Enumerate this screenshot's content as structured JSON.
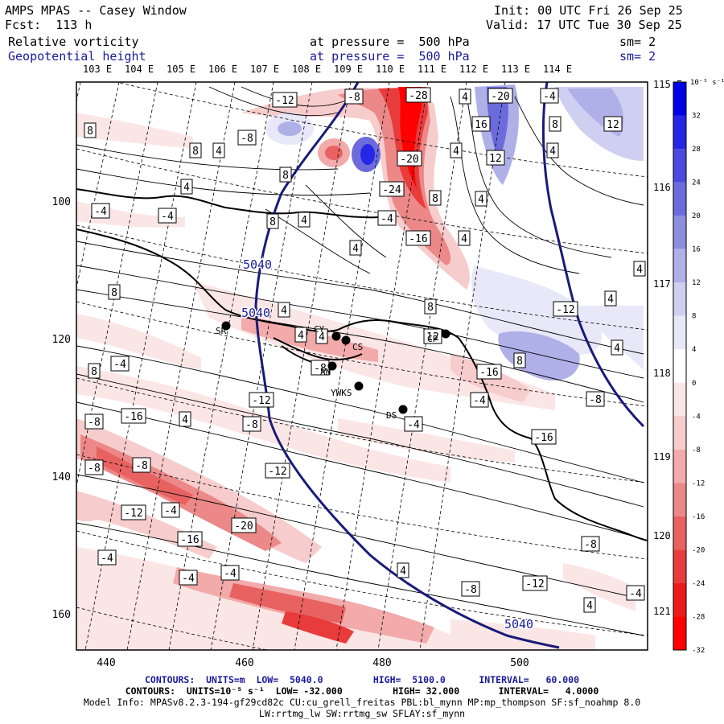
{
  "header": {
    "title": "AMPS MPAS -- Casey Window",
    "forecast": "Fcst:  113 h",
    "init": "Init: 00 UTC Fri 26 Sep 25",
    "valid": "Valid: 17 UTC Tue 30 Sep 25",
    "field1_name": "Relative vorticity",
    "field1_level": "at pressure =  500 hPa",
    "field1_smooth": "sm= 2",
    "field2_name": "Geopotential height",
    "field2_level": "at pressure =  500 hPa",
    "field2_smooth": "sm= 2"
  },
  "longitude_top_labels": [
    "103 E",
    "104 E",
    "105 E",
    "106 E",
    "107 E",
    "108 E",
    "109 E",
    "110 E",
    "111 E",
    "112 E",
    "113 E",
    "114 E"
  ],
  "longitude_right_labels": [
    "115 E",
    "116 E",
    "117 E",
    "118 E",
    "119 E",
    "120 E",
    "121 E"
  ],
  "grid_x_ticks": [
    "440",
    "460",
    "480",
    "500"
  ],
  "grid_y_ticks": [
    "100",
    "120",
    "140",
    "160"
  ],
  "stations": [
    {
      "label": "SR"
    },
    {
      "label": "CS"
    },
    {
      "label": "AN"
    },
    {
      "label": "YWKS"
    },
    {
      "label": "DS"
    },
    {
      "label": "CP"
    },
    {
      "label": "CY"
    }
  ],
  "height_contour_labels": [
    "5040",
    "5040",
    "5040"
  ],
  "vorticity_labels": [
    "-12",
    "-8",
    "-28",
    "4",
    "-20",
    "-4",
    "16",
    "8",
    "12",
    "8",
    "8",
    "4",
    "-8",
    "-20",
    "4",
    "12",
    "4",
    "8",
    "-24",
    "4",
    "8",
    "4",
    "-4",
    "-4",
    "8",
    "4",
    "-4",
    "-16",
    "4",
    "4",
    "4",
    "8",
    "4",
    "8",
    "-12",
    "4",
    "4",
    "4",
    "12",
    "8",
    "-16",
    "4",
    "-8",
    "-4",
    "-8",
    "8",
    "-4",
    "-4",
    "-16",
    "4",
    "-8",
    "-12",
    "-16",
    "-8",
    "-12",
    "-8",
    "-8",
    "-4",
    "-20",
    "-12",
    "-16",
    "-8",
    "-4",
    "-4",
    "-4",
    "4",
    "-8",
    "-12",
    "4",
    "-4"
  ],
  "colorbar": {
    "unit": "10⁻⁵ s⁻¹",
    "levels": [
      "32",
      "28",
      "24",
      "20",
      "16",
      "12",
      "8",
      "4",
      "0",
      "-4",
      "-8",
      "-12",
      "-16",
      "-20",
      "-24",
      "-28",
      "-32"
    ],
    "colors": [
      "#0000e8",
      "#2626e6",
      "#4a4ae0",
      "#6b6bdc",
      "#8e8edf",
      "#b0b0e8",
      "#cfcff1",
      "#e8e8f8",
      "#ffffff",
      "#fbe6e6",
      "#f7cccc",
      "#f2aaaa",
      "#ec8888",
      "#e86262",
      "#e83c3c",
      "#ec1a1a",
      "#ff0000"
    ]
  },
  "footer": {
    "contours1": "CONTOURS:  UNITS=m  LOW=  5040.0         HIGH=  5100.0      INTERVAL=   60.000",
    "contours2": "CONTOURS:  UNITS=10⁻⁵ s⁻¹  LOW= -32.000         HIGH= 32.000       INTERVAL=   4.0000",
    "model_info": "Model Info: MPASv8.2.3-194-gf29cd82c CU:cu_grell_freitas PBL:bl_mynn MP:mp_thompson SF:sf_noahmp 8.0",
    "model_info2": "LW:rrtmg_lw SW:rrtmg_sw SFLAY:sf_mynn"
  }
}
